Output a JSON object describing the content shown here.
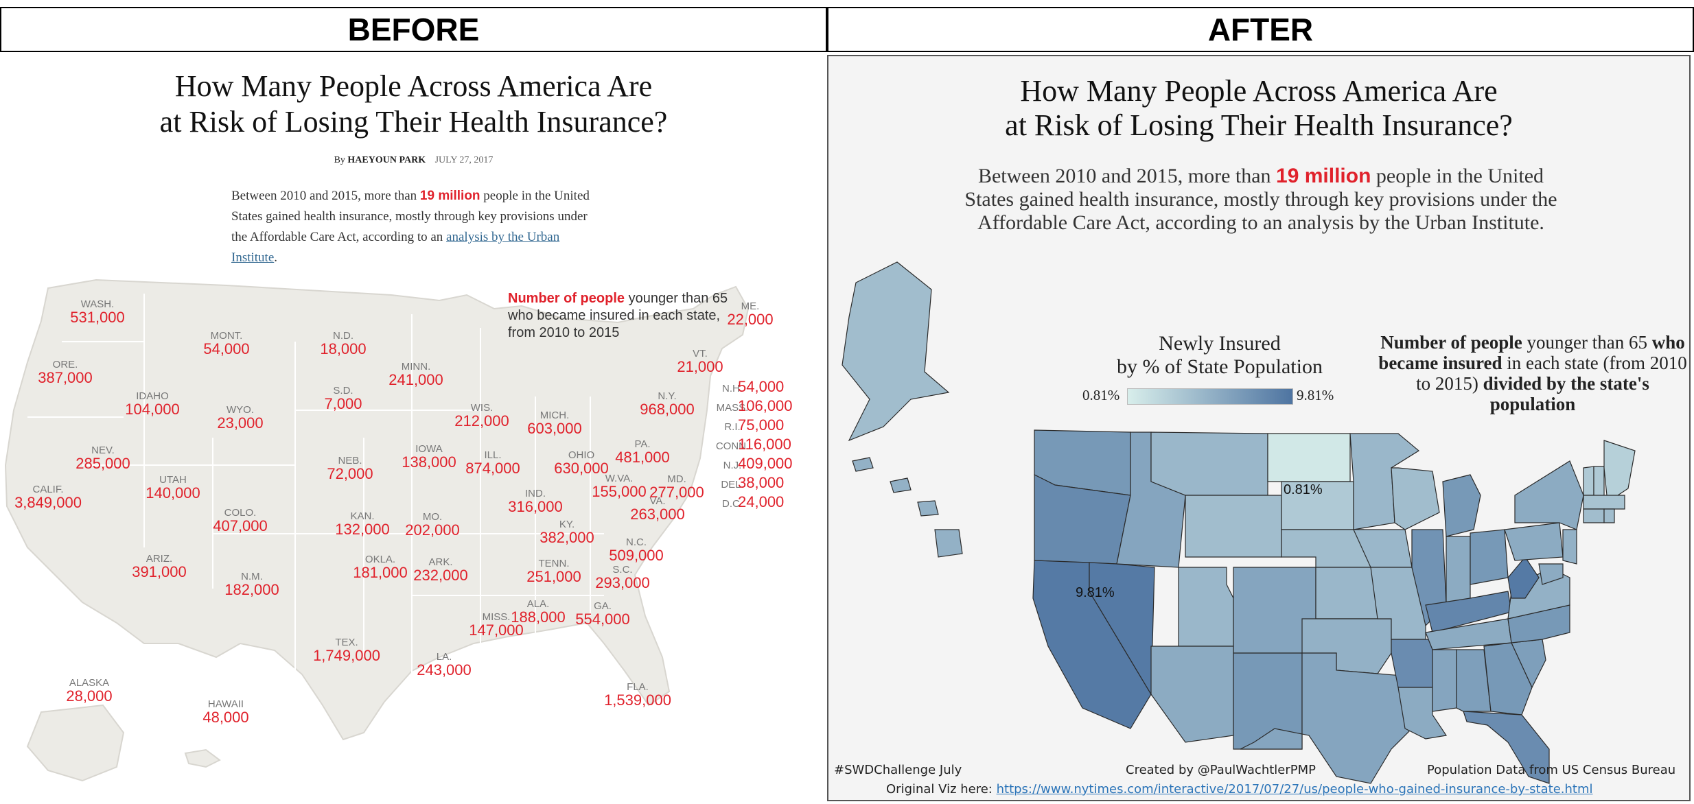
{
  "headers": {
    "before": "BEFORE",
    "after": "AFTER"
  },
  "before": {
    "title_line1": "How Many People Across America Are",
    "title_line2": "at Risk of Losing Their Health Insurance?",
    "byline_prefix": "By",
    "author": "HAEYOUN PARK",
    "date": "JULY 27, 2017",
    "intro_part1": "Between 2010 and 2015, more than",
    "intro_highlight": "19 million",
    "intro_part2": "people in the United States gained health insurance, mostly through key provisions under the Affordable Care Act, according to an",
    "intro_link": "analysis by the Urban Institute",
    "intro_end": ".",
    "legend_highlight": "Number of people",
    "legend_text": "younger than 65 who became insured in each state, from 2010 to 2015",
    "states": [
      {
        "name": "WASH.",
        "value": "531,000"
      },
      {
        "name": "ORE.",
        "value": "387,000"
      },
      {
        "name": "CALIF.",
        "value": "3,849,000"
      },
      {
        "name": "IDAHO",
        "value": "104,000"
      },
      {
        "name": "NEV.",
        "value": "285,000"
      },
      {
        "name": "MONT.",
        "value": "54,000"
      },
      {
        "name": "WYO.",
        "value": "23,000"
      },
      {
        "name": "UTAH",
        "value": "140,000"
      },
      {
        "name": "COLO.",
        "value": "407,000"
      },
      {
        "name": "ARIZ.",
        "value": "391,000"
      },
      {
        "name": "N.M.",
        "value": "182,000"
      },
      {
        "name": "N.D.",
        "value": "18,000"
      },
      {
        "name": "S.D.",
        "value": "7,000"
      },
      {
        "name": "NEB.",
        "value": "72,000"
      },
      {
        "name": "KAN.",
        "value": "132,000"
      },
      {
        "name": "OKLA.",
        "value": "181,000"
      },
      {
        "name": "TEX.",
        "value": "1,749,000"
      },
      {
        "name": "MINN.",
        "value": "241,000"
      },
      {
        "name": "IOWA",
        "value": "138,000"
      },
      {
        "name": "MO.",
        "value": "202,000"
      },
      {
        "name": "ARK.",
        "value": "232,000"
      },
      {
        "name": "LA.",
        "value": "243,000"
      },
      {
        "name": "WIS.",
        "value": "212,000"
      },
      {
        "name": "ILL.",
        "value": "874,000"
      },
      {
        "name": "MICH.",
        "value": "603,000"
      },
      {
        "name": "IND.",
        "value": "316,000"
      },
      {
        "name": "OHIO",
        "value": "630,000"
      },
      {
        "name": "KY.",
        "value": "382,000"
      },
      {
        "name": "TENN.",
        "value": "251,000"
      },
      {
        "name": "MISS.",
        "value": "147,000"
      },
      {
        "name": "ALA.",
        "value": "188,000"
      },
      {
        "name": "GA.",
        "value": "554,000"
      },
      {
        "name": "FLA.",
        "value": "1,539,000"
      },
      {
        "name": "S.C.",
        "value": "293,000"
      },
      {
        "name": "N.C.",
        "value": "509,000"
      },
      {
        "name": "VA.",
        "value": "263,000"
      },
      {
        "name": "W.VA.",
        "value": "155,000"
      },
      {
        "name": "PA.",
        "value": "481,000"
      },
      {
        "name": "N.Y.",
        "value": "968,000"
      },
      {
        "name": "MD.",
        "value": "277,000"
      },
      {
        "name": "VT.",
        "value": "21,000"
      },
      {
        "name": "ME.",
        "value": "22,000"
      },
      {
        "name": "N.H.",
        "value": "54,000"
      },
      {
        "name": "MASS.",
        "value": "106,000"
      },
      {
        "name": "R.I.",
        "value": "75,000"
      },
      {
        "name": "CONN.",
        "value": "116,000"
      },
      {
        "name": "N.J.",
        "value": "409,000"
      },
      {
        "name": "DEL.",
        "value": "38,000"
      },
      {
        "name": "D.C.",
        "value": "24,000"
      },
      {
        "name": "ALASKA",
        "value": "28,000"
      },
      {
        "name": "HAWAII",
        "value": "48,000"
      }
    ]
  },
  "after": {
    "title_line1": "How Many People Across America Are",
    "title_line2": "at Risk of Losing Their Health Insurance?",
    "intro_part1": "Between 2010 and 2015, more than",
    "intro_highlight": "19 million",
    "intro_part2": "people in the United States gained health insurance, mostly through key provisions under the Affordable Care Act, according to an analysis by the Urban Institute.",
    "legend_title_line1": "Newly Insured",
    "legend_title_line2": "by % of State Population",
    "legend_min": "0.81%",
    "legend_max": "9.81%",
    "color_min": "#d8eeeb",
    "color_max": "#4e74a1",
    "note_bold1": "Number of people",
    "note_text1": "younger than 65",
    "note_bold2": "who became insured",
    "note_text2": "in each state (from 2010 to 2015)",
    "note_bold3": "divided by the state's population",
    "label_min": "0.81%",
    "label_max": "9.81%",
    "footer_left": "#SWDChallenge July",
    "footer_center": "Created by @PaulWachtlerPMP",
    "footer_right": "Population Data from US Census Bureau",
    "footer_original_label": "Original Viz here:",
    "footer_url": "https://www.nytimes.com/interactive/2017/07/27/us/people-who-gained-insurance-by-state.html"
  }
}
